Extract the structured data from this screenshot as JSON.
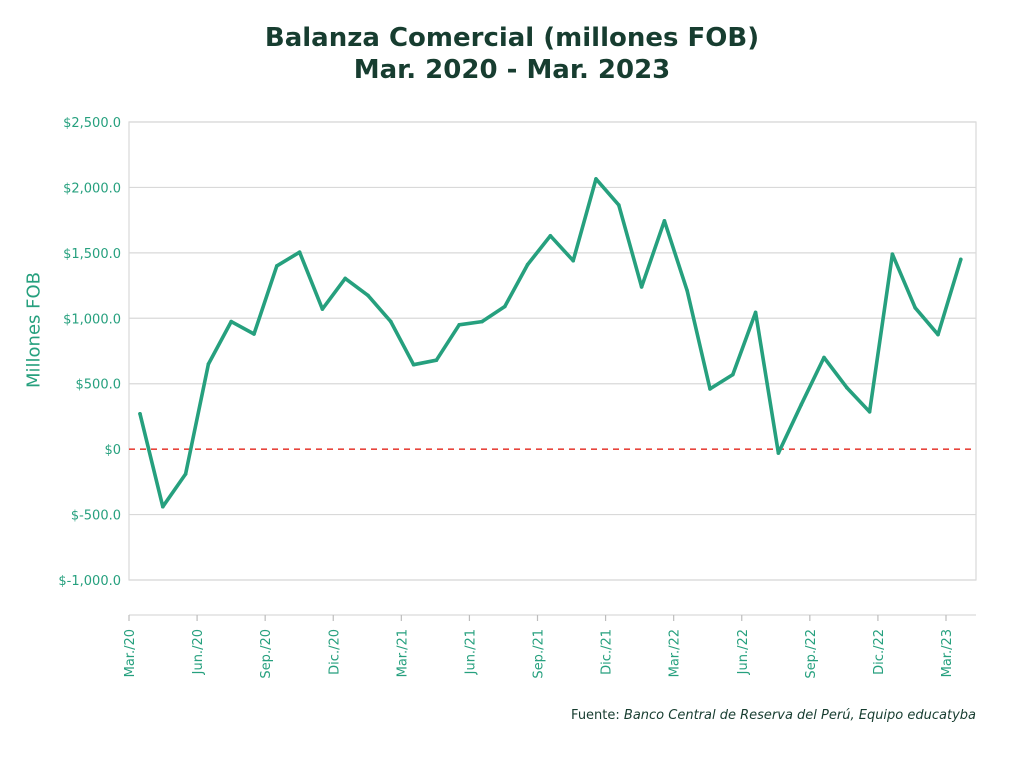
{
  "chart_data": {
    "type": "line",
    "title_line1": "Balanza Comercial (millones FOB)",
    "title_line2": "Mar. 2020 - Mar. 2023",
    "ylabel": "Millones FOB",
    "ylim": [
      -1000,
      2500
    ],
    "y_ticks": [
      2500,
      2000,
      1500,
      1000,
      500,
      0,
      -500,
      -1000
    ],
    "y_tick_labels": [
      "$2,500.0",
      "$2,000.0",
      "$1,500.0",
      "$1,000.0",
      "$500.0",
      "$0",
      "$-500.0",
      "$-1,000.0"
    ],
    "x_tick_labels": [
      "Mar./20",
      "Jun./20",
      "Sep./20",
      "Dic./20",
      "Mar./21",
      "Jun./21",
      "Sep./21",
      "Dic./21",
      "Mar./22",
      "Jun./22",
      "Sep./22",
      "Dic./22",
      "Mar./23"
    ],
    "zero_line": true,
    "grid": true,
    "series": [
      {
        "values": [
          270,
          -440,
          -190,
          650,
          975,
          880,
          1400,
          1505,
          1070,
          1305,
          1175,
          975,
          645,
          680,
          950,
          975,
          1090,
          1410,
          1630,
          1440,
          2065,
          1865,
          1240,
          1745,
          1210,
          460,
          570,
          1045,
          -30,
          340,
          700,
          470,
          285,
          1490,
          1080,
          875,
          1450
        ]
      }
    ],
    "colors": {
      "line": "#26a07e",
      "zero_line": "#e8453c",
      "grid": "#d9d9d9",
      "title": "#173d30"
    }
  },
  "source": {
    "prefix": "Fuente:",
    "text": "Banco Central de Reserva del Perú, Equipo educatyba"
  }
}
